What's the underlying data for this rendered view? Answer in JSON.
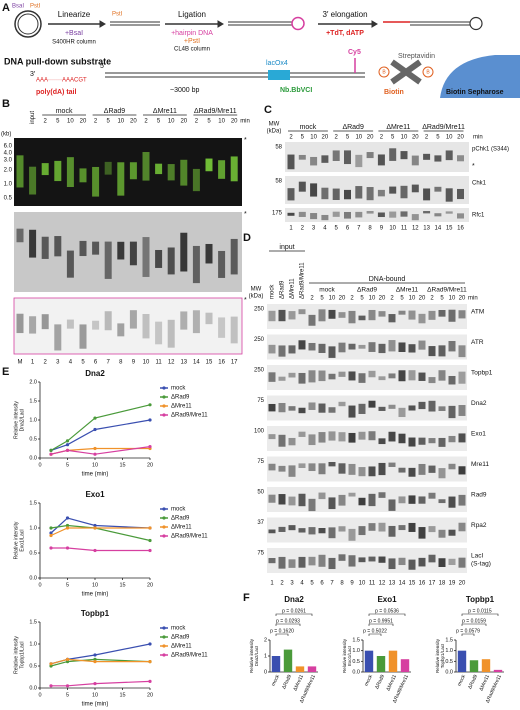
{
  "panels": {
    "a": "A",
    "b": "B",
    "c": "C",
    "d": "D",
    "e": "E",
    "f": "F"
  },
  "panel_a": {
    "bsai": "BsaI",
    "psti": "PstI",
    "step1": "Linearize",
    "step1_reagent": "+BsaI",
    "step1_column": "S400HR column",
    "psti2": "PstI",
    "step2": "Ligation",
    "step2_reagent1": "+hairpin DNA",
    "step2_reagent2": "+PstI",
    "step2_column": "CL4B column",
    "step3": "3′ elongation",
    "step3_reagent": "+TdT, dATP",
    "substrate_title": "DNA pull-down substrate",
    "end3": "3′",
    "end5": "5′",
    "polya_seq": "AAA·······AAACGT",
    "polya_label": "poly(dA) tail",
    "length": "~3000 bp",
    "lacox4": "lacOx4",
    "nick": "Nb.BbVCI",
    "cy5": "Cy5",
    "streptavidin": "Streptavidin",
    "biotin": "Biotin",
    "bead": "Biotin Sepharose",
    "b_icon": "B"
  },
  "panel_b": {
    "input": "input",
    "groups": [
      "mock",
      "ΔRad9",
      "ΔMre11",
      "ΔRad9/Mre11"
    ],
    "timepoints": [
      2,
      5,
      10,
      20
    ],
    "min": "min",
    "kb_unit": "(kb)",
    "ladder": [
      "6.0",
      "4.0",
      "3.0",
      "2.0",
      "1.0",
      "0.5"
    ],
    "asterisk": "*",
    "lanes": [
      "M",
      "1",
      "2",
      "3",
      "4",
      "5",
      "6",
      "7",
      "8",
      "9",
      "10",
      "11",
      "12",
      "13",
      "14",
      "15",
      "16",
      "17"
    ]
  },
  "panel_c": {
    "mw": "MW",
    "mw_unit": "(kDa)",
    "groups": [
      "mock",
      "ΔRad9",
      "ΔMre11",
      "ΔRad9/Mre11"
    ],
    "timepoints": [
      2,
      5,
      10,
      20
    ],
    "min": "min",
    "asterisk": "*",
    "rows": [
      {
        "name": "pChk1 (S344)",
        "mw": "58"
      },
      {
        "name": "Chk1",
        "mw": "58"
      },
      {
        "name": "Rfc1",
        "mw": "175"
      }
    ],
    "lanes": [
      "1",
      "2",
      "3",
      "4",
      "5",
      "6",
      "7",
      "8",
      "9",
      "10",
      "11",
      "12",
      "13",
      "14",
      "15",
      "16"
    ]
  },
  "panel_d": {
    "input": "input",
    "input_lanes": [
      "mock",
      "ΔRad9",
      "ΔMre11",
      "ΔRad9/Mre11"
    ],
    "bound": "DNA-bound",
    "groups": [
      "mock",
      "ΔRad9",
      "ΔMre11",
      "ΔRad9/Mre11"
    ],
    "timepoints": [
      2,
      5,
      10,
      20
    ],
    "min": "min",
    "mw": "MW",
    "mw_unit": "(kDa)",
    "rows": [
      {
        "name": "ATM",
        "mw": "250"
      },
      {
        "name": "ATR",
        "mw": "250"
      },
      {
        "name": "Topbp1",
        "mw": "250"
      },
      {
        "name": "Dna2",
        "mw": "75"
      },
      {
        "name": "Exo1",
        "mw": "100"
      },
      {
        "name": "Mre11",
        "mw": "75"
      },
      {
        "name": "Rad9",
        "mw": "50"
      },
      {
        "name": "Rpa2",
        "mw": "37"
      },
      {
        "name": "LacI",
        "name2": "(S-tag)",
        "mw": "75"
      }
    ],
    "lanes": [
      "1",
      "2",
      "3",
      "4",
      "5",
      "6",
      "7",
      "8",
      "9",
      "10",
      "11",
      "12",
      "13",
      "14",
      "15",
      "16",
      "17",
      "18",
      "19",
      "20"
    ]
  },
  "chart_data": [
    {
      "type": "line",
      "title": "Dna2",
      "xlabel": "time (min)",
      "ylabel": [
        "Relative intensity",
        "Dna2/LacI"
      ],
      "x": [
        2,
        5,
        10,
        20
      ],
      "xlim": [
        0,
        20
      ],
      "xticks": [
        0,
        5,
        10,
        15,
        20
      ],
      "ylim": [
        0,
        2
      ],
      "yticks": [
        {
          "value": 0,
          "label": "0.0"
        },
        0.5,
        {
          "value": 1,
          "label": "1.0"
        },
        1.5,
        {
          "value": 2,
          "label": "2.0"
        }
      ],
      "legend": "right",
      "series": [
        {
          "name": "mock",
          "color": "#3a4fb0",
          "values": [
            0.2,
            0.35,
            0.75,
            1.0
          ]
        },
        {
          "name": "ΔRad9",
          "color": "#4a9a3a",
          "values": [
            0.2,
            0.45,
            1.05,
            1.4
          ]
        },
        {
          "name": "ΔMre11",
          "color": "#f0922a",
          "values": [
            0.1,
            0.2,
            0.25,
            0.25
          ]
        },
        {
          "name": "ΔRad9/Mre11",
          "color": "#d63fa0",
          "values": [
            0.1,
            0.2,
            0.1,
            0.3
          ]
        }
      ]
    },
    {
      "type": "line",
      "title": "Exo1",
      "xlabel": "time (min)",
      "ylabel": [
        "Relative intensity",
        "Exo1/LacI"
      ],
      "x": [
        2,
        5,
        10,
        20
      ],
      "xlim": [
        0,
        20
      ],
      "xticks": [
        0,
        5,
        10,
        15,
        20
      ],
      "ylim": [
        0,
        1.5
      ],
      "yticks": [
        {
          "value": 0,
          "label": "0.0"
        },
        0.5,
        {
          "value": 1,
          "label": "1.0"
        },
        1.5
      ],
      "legend": "right",
      "series": [
        {
          "name": "mock",
          "color": "#3a4fb0",
          "values": [
            0.9,
            1.2,
            1.05,
            1.0
          ]
        },
        {
          "name": "ΔRad9",
          "color": "#4a9a3a",
          "values": [
            1.0,
            1.05,
            1.0,
            0.75
          ]
        },
        {
          "name": "ΔMre11",
          "color": "#f0922a",
          "values": [
            0.85,
            1.0,
            1.0,
            1.0
          ]
        },
        {
          "name": "ΔRad9/Mre11",
          "color": "#d63fa0",
          "values": [
            0.6,
            0.6,
            0.55,
            0.55
          ]
        }
      ]
    },
    {
      "type": "line",
      "title": "Topbp1",
      "xlabel": "time (min)",
      "ylabel": [
        "Relative intensity",
        "Topbp1/LacI"
      ],
      "x": [
        2,
        5,
        10,
        20
      ],
      "xlim": [
        0,
        20
      ],
      "xticks": [
        0,
        5,
        10,
        15,
        20
      ],
      "ylim": [
        0,
        1.5
      ],
      "yticks": [
        {
          "value": 0,
          "label": "0.0"
        },
        0.5,
        {
          "value": 1,
          "label": "1.0"
        },
        1.5
      ],
      "legend": "right",
      "series": [
        {
          "name": "mock",
          "color": "#3a4fb0",
          "values": [
            0.55,
            0.65,
            0.75,
            1.0
          ]
        },
        {
          "name": "ΔRad9",
          "color": "#4a9a3a",
          "values": [
            0.5,
            0.6,
            0.65,
            0.6
          ]
        },
        {
          "name": "ΔMre11",
          "color": "#f0922a",
          "values": [
            0.55,
            0.65,
            0.6,
            0.6
          ]
        },
        {
          "name": "ΔRad9/Mre11",
          "color": "#d63fa0",
          "values": [
            0.05,
            0.05,
            0.1,
            0.15
          ]
        }
      ]
    },
    {
      "type": "bar",
      "title": "Dna2",
      "ylabel": [
        "Relative intensity",
        "Dna2/LacI"
      ],
      "categories": [
        "mock",
        "ΔRad9",
        "ΔMre11",
        "ΔRad9/Mre11"
      ],
      "values": [
        1.0,
        1.4,
        0.35,
        0.35
      ],
      "colors": [
        "#3a4fb0",
        "#4a9a3a",
        "#f0922a",
        "#d63fa0"
      ],
      "ylim": [
        0,
        2
      ],
      "yticks": [
        0,
        1,
        2
      ],
      "p_values": [
        "p = 0.1620",
        "p = 0.0293",
        "p = 0.0261"
      ]
    },
    {
      "type": "bar",
      "title": "Exo1",
      "ylabel": [
        "Relative intensity",
        "Exo1/LacI"
      ],
      "categories": [
        "mock",
        "ΔRad9",
        "ΔMre11",
        "ΔRad9/Mre11"
      ],
      "values": [
        1.0,
        0.75,
        1.0,
        0.6
      ],
      "colors": [
        "#3a4fb0",
        "#4a9a3a",
        "#f0922a",
        "#d63fa0"
      ],
      "ylim": [
        0,
        1.5
      ],
      "yticks": [
        {
          "value": 0,
          "label": "0.0"
        },
        0.5,
        {
          "value": 1,
          "label": "1.0"
        },
        1.5
      ],
      "p_values": [
        "p = 0.5022",
        "p = 0.9951",
        "p = 0.0536"
      ]
    },
    {
      "type": "bar",
      "title": "Topbp1",
      "ylabel": [
        "Relative intensity",
        "Topbp1/LacI"
      ],
      "categories": [
        "mock",
        "ΔRad9",
        "ΔMre11",
        "ΔRad9/Mre11"
      ],
      "values": [
        1.0,
        0.55,
        0.6,
        0.1
      ],
      "colors": [
        "#3a4fb0",
        "#4a9a3a",
        "#f0922a",
        "#d63fa0"
      ],
      "ylim": [
        0,
        1.5
      ],
      "yticks": [
        {
          "value": 0,
          "label": "0.0"
        },
        0.5,
        {
          "value": 1,
          "label": "1.0"
        },
        1.5
      ],
      "p_values": [
        "p = 0.0579",
        "p = 0.0159",
        "p = 0.0115"
      ]
    }
  ]
}
